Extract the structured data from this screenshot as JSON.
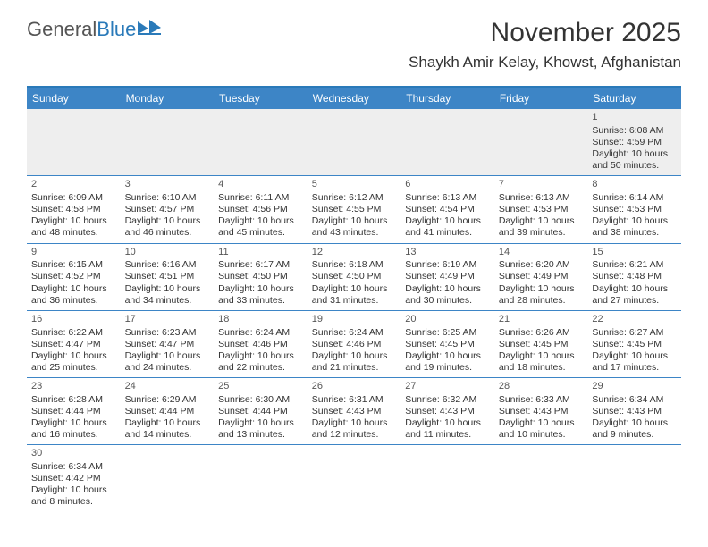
{
  "logo": {
    "part1": "General",
    "part2": "Blue"
  },
  "title": "November 2025",
  "location": "Shaykh Amir Kelay, Khowst, Afghanistan",
  "colors": {
    "header_bg": "#3d85c6",
    "header_text": "#ffffff",
    "border": "#2a7ab9",
    "body_text": "#333333",
    "first_row_bg": "#eeeeee"
  },
  "weekdays": [
    "Sunday",
    "Monday",
    "Tuesday",
    "Wednesday",
    "Thursday",
    "Friday",
    "Saturday"
  ],
  "weeks": [
    [
      null,
      null,
      null,
      null,
      null,
      null,
      {
        "n": "1",
        "sunrise": "Sunrise: 6:08 AM",
        "sunset": "Sunset: 4:59 PM",
        "day1": "Daylight: 10 hours",
        "day2": "and 50 minutes."
      }
    ],
    [
      {
        "n": "2",
        "sunrise": "Sunrise: 6:09 AM",
        "sunset": "Sunset: 4:58 PM",
        "day1": "Daylight: 10 hours",
        "day2": "and 48 minutes."
      },
      {
        "n": "3",
        "sunrise": "Sunrise: 6:10 AM",
        "sunset": "Sunset: 4:57 PM",
        "day1": "Daylight: 10 hours",
        "day2": "and 46 minutes."
      },
      {
        "n": "4",
        "sunrise": "Sunrise: 6:11 AM",
        "sunset": "Sunset: 4:56 PM",
        "day1": "Daylight: 10 hours",
        "day2": "and 45 minutes."
      },
      {
        "n": "5",
        "sunrise": "Sunrise: 6:12 AM",
        "sunset": "Sunset: 4:55 PM",
        "day1": "Daylight: 10 hours",
        "day2": "and 43 minutes."
      },
      {
        "n": "6",
        "sunrise": "Sunrise: 6:13 AM",
        "sunset": "Sunset: 4:54 PM",
        "day1": "Daylight: 10 hours",
        "day2": "and 41 minutes."
      },
      {
        "n": "7",
        "sunrise": "Sunrise: 6:13 AM",
        "sunset": "Sunset: 4:53 PM",
        "day1": "Daylight: 10 hours",
        "day2": "and 39 minutes."
      },
      {
        "n": "8",
        "sunrise": "Sunrise: 6:14 AM",
        "sunset": "Sunset: 4:53 PM",
        "day1": "Daylight: 10 hours",
        "day2": "and 38 minutes."
      }
    ],
    [
      {
        "n": "9",
        "sunrise": "Sunrise: 6:15 AM",
        "sunset": "Sunset: 4:52 PM",
        "day1": "Daylight: 10 hours",
        "day2": "and 36 minutes."
      },
      {
        "n": "10",
        "sunrise": "Sunrise: 6:16 AM",
        "sunset": "Sunset: 4:51 PM",
        "day1": "Daylight: 10 hours",
        "day2": "and 34 minutes."
      },
      {
        "n": "11",
        "sunrise": "Sunrise: 6:17 AM",
        "sunset": "Sunset: 4:50 PM",
        "day1": "Daylight: 10 hours",
        "day2": "and 33 minutes."
      },
      {
        "n": "12",
        "sunrise": "Sunrise: 6:18 AM",
        "sunset": "Sunset: 4:50 PM",
        "day1": "Daylight: 10 hours",
        "day2": "and 31 minutes."
      },
      {
        "n": "13",
        "sunrise": "Sunrise: 6:19 AM",
        "sunset": "Sunset: 4:49 PM",
        "day1": "Daylight: 10 hours",
        "day2": "and 30 minutes."
      },
      {
        "n": "14",
        "sunrise": "Sunrise: 6:20 AM",
        "sunset": "Sunset: 4:49 PM",
        "day1": "Daylight: 10 hours",
        "day2": "and 28 minutes."
      },
      {
        "n": "15",
        "sunrise": "Sunrise: 6:21 AM",
        "sunset": "Sunset: 4:48 PM",
        "day1": "Daylight: 10 hours",
        "day2": "and 27 minutes."
      }
    ],
    [
      {
        "n": "16",
        "sunrise": "Sunrise: 6:22 AM",
        "sunset": "Sunset: 4:47 PM",
        "day1": "Daylight: 10 hours",
        "day2": "and 25 minutes."
      },
      {
        "n": "17",
        "sunrise": "Sunrise: 6:23 AM",
        "sunset": "Sunset: 4:47 PM",
        "day1": "Daylight: 10 hours",
        "day2": "and 24 minutes."
      },
      {
        "n": "18",
        "sunrise": "Sunrise: 6:24 AM",
        "sunset": "Sunset: 4:46 PM",
        "day1": "Daylight: 10 hours",
        "day2": "and 22 minutes."
      },
      {
        "n": "19",
        "sunrise": "Sunrise: 6:24 AM",
        "sunset": "Sunset: 4:46 PM",
        "day1": "Daylight: 10 hours",
        "day2": "and 21 minutes."
      },
      {
        "n": "20",
        "sunrise": "Sunrise: 6:25 AM",
        "sunset": "Sunset: 4:45 PM",
        "day1": "Daylight: 10 hours",
        "day2": "and 19 minutes."
      },
      {
        "n": "21",
        "sunrise": "Sunrise: 6:26 AM",
        "sunset": "Sunset: 4:45 PM",
        "day1": "Daylight: 10 hours",
        "day2": "and 18 minutes."
      },
      {
        "n": "22",
        "sunrise": "Sunrise: 6:27 AM",
        "sunset": "Sunset: 4:45 PM",
        "day1": "Daylight: 10 hours",
        "day2": "and 17 minutes."
      }
    ],
    [
      {
        "n": "23",
        "sunrise": "Sunrise: 6:28 AM",
        "sunset": "Sunset: 4:44 PM",
        "day1": "Daylight: 10 hours",
        "day2": "and 16 minutes."
      },
      {
        "n": "24",
        "sunrise": "Sunrise: 6:29 AM",
        "sunset": "Sunset: 4:44 PM",
        "day1": "Daylight: 10 hours",
        "day2": "and 14 minutes."
      },
      {
        "n": "25",
        "sunrise": "Sunrise: 6:30 AM",
        "sunset": "Sunset: 4:44 PM",
        "day1": "Daylight: 10 hours",
        "day2": "and 13 minutes."
      },
      {
        "n": "26",
        "sunrise": "Sunrise: 6:31 AM",
        "sunset": "Sunset: 4:43 PM",
        "day1": "Daylight: 10 hours",
        "day2": "and 12 minutes."
      },
      {
        "n": "27",
        "sunrise": "Sunrise: 6:32 AM",
        "sunset": "Sunset: 4:43 PM",
        "day1": "Daylight: 10 hours",
        "day2": "and 11 minutes."
      },
      {
        "n": "28",
        "sunrise": "Sunrise: 6:33 AM",
        "sunset": "Sunset: 4:43 PM",
        "day1": "Daylight: 10 hours",
        "day2": "and 10 minutes."
      },
      {
        "n": "29",
        "sunrise": "Sunrise: 6:34 AM",
        "sunset": "Sunset: 4:43 PM",
        "day1": "Daylight: 10 hours",
        "day2": "and 9 minutes."
      }
    ],
    [
      {
        "n": "30",
        "sunrise": "Sunrise: 6:34 AM",
        "sunset": "Sunset: 4:42 PM",
        "day1": "Daylight: 10 hours",
        "day2": "and 8 minutes."
      },
      null,
      null,
      null,
      null,
      null,
      null
    ]
  ]
}
